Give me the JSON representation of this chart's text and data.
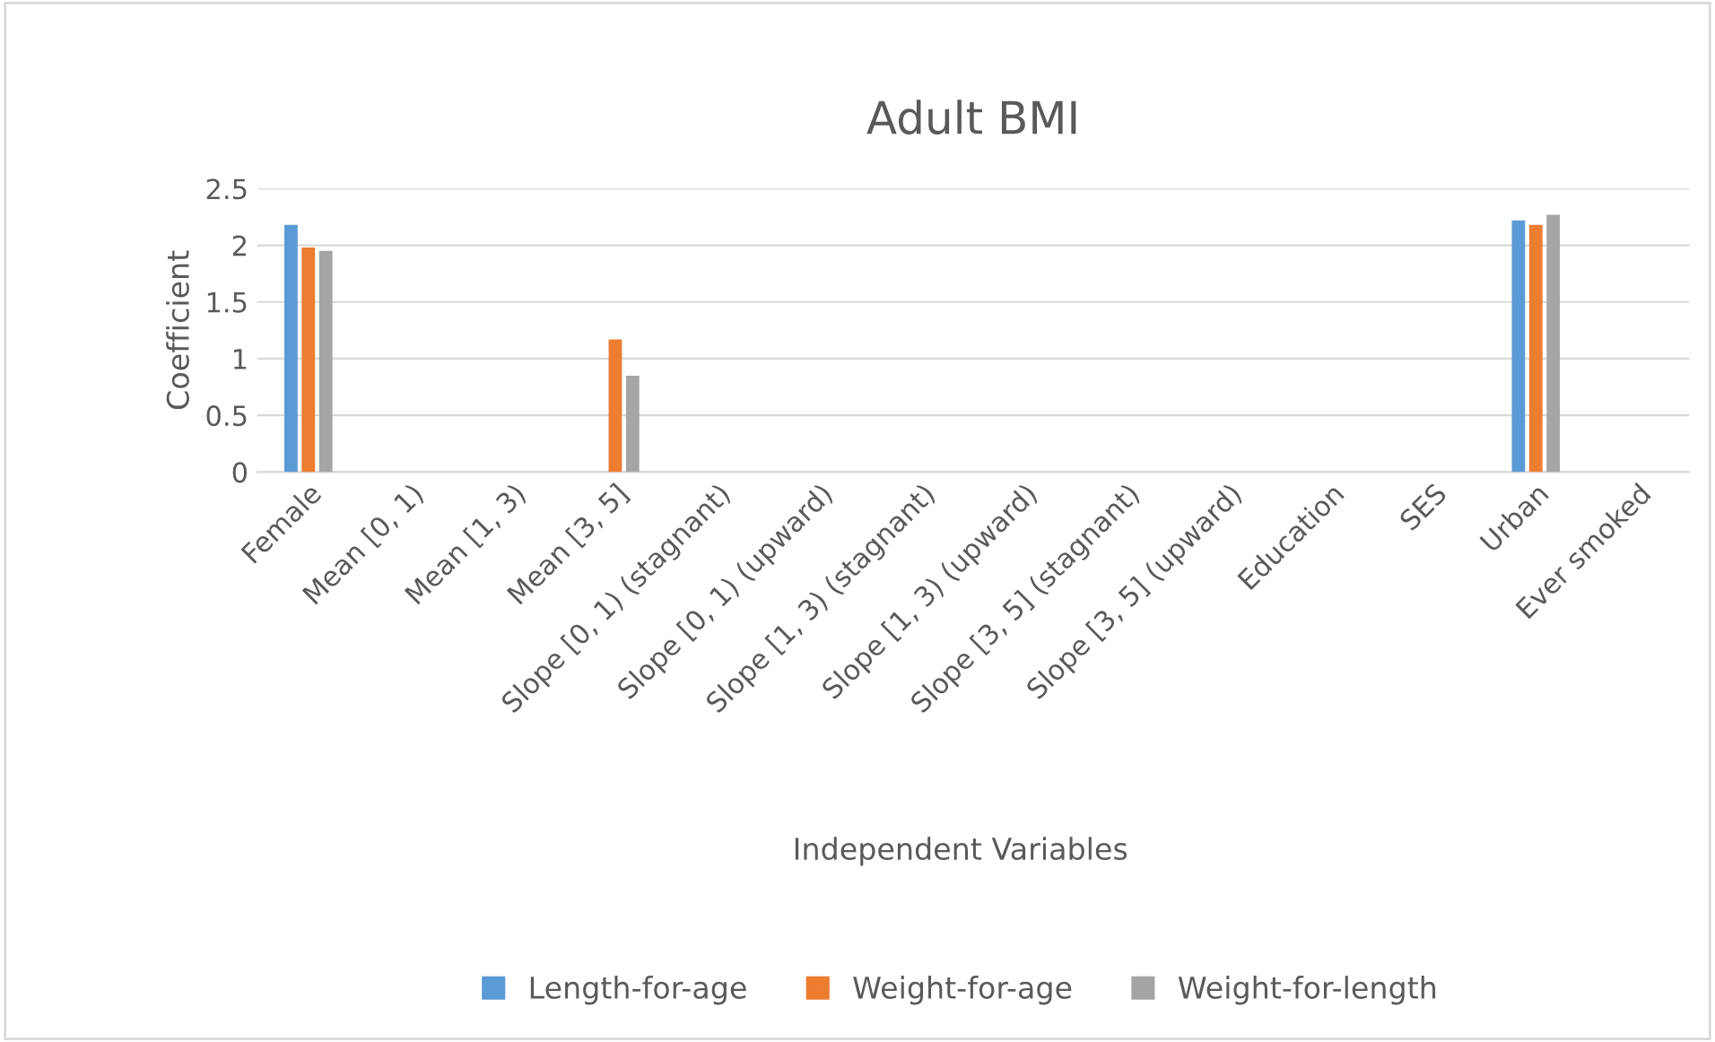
{
  "chart_data": {
    "type": "bar",
    "title": "Adult BMI",
    "xlabel": "Independent Variables",
    "ylabel": "Coefficient",
    "categories": [
      "Female",
      "Mean [0, 1)",
      "Mean [1, 3)",
      "Mean [3, 5]",
      "Slope [0, 1) (stagnant)",
      "Slope [0, 1) (upward)",
      "Slope [1, 3) (stagnant)",
      "Slope [1, 3) (upward)",
      "Slope [3, 5] (stagnant)",
      "Slope [3, 5] (upward)",
      "Education",
      "SES",
      "Urban",
      "Ever smoked"
    ],
    "series": [
      {
        "name": "Length-for-age",
        "color": "#5b9bd5",
        "values": [
          2.18,
          null,
          null,
          null,
          null,
          null,
          null,
          null,
          null,
          null,
          null,
          null,
          2.22,
          null
        ]
      },
      {
        "name": "Weight-for-age",
        "color": "#ed7d31",
        "values": [
          1.98,
          null,
          null,
          1.17,
          null,
          null,
          null,
          null,
          null,
          null,
          null,
          null,
          2.18,
          null
        ]
      },
      {
        "name": "Weight-for-length",
        "color": "#a5a5a5",
        "values": [
          1.95,
          null,
          null,
          0.85,
          null,
          null,
          null,
          null,
          null,
          null,
          null,
          null,
          2.27,
          null
        ]
      }
    ],
    "ylim": [
      0,
      2.5
    ],
    "yticks": [
      0,
      0.5,
      1,
      1.5,
      2,
      2.5
    ],
    "grid": "y",
    "legend": "bottom"
  }
}
